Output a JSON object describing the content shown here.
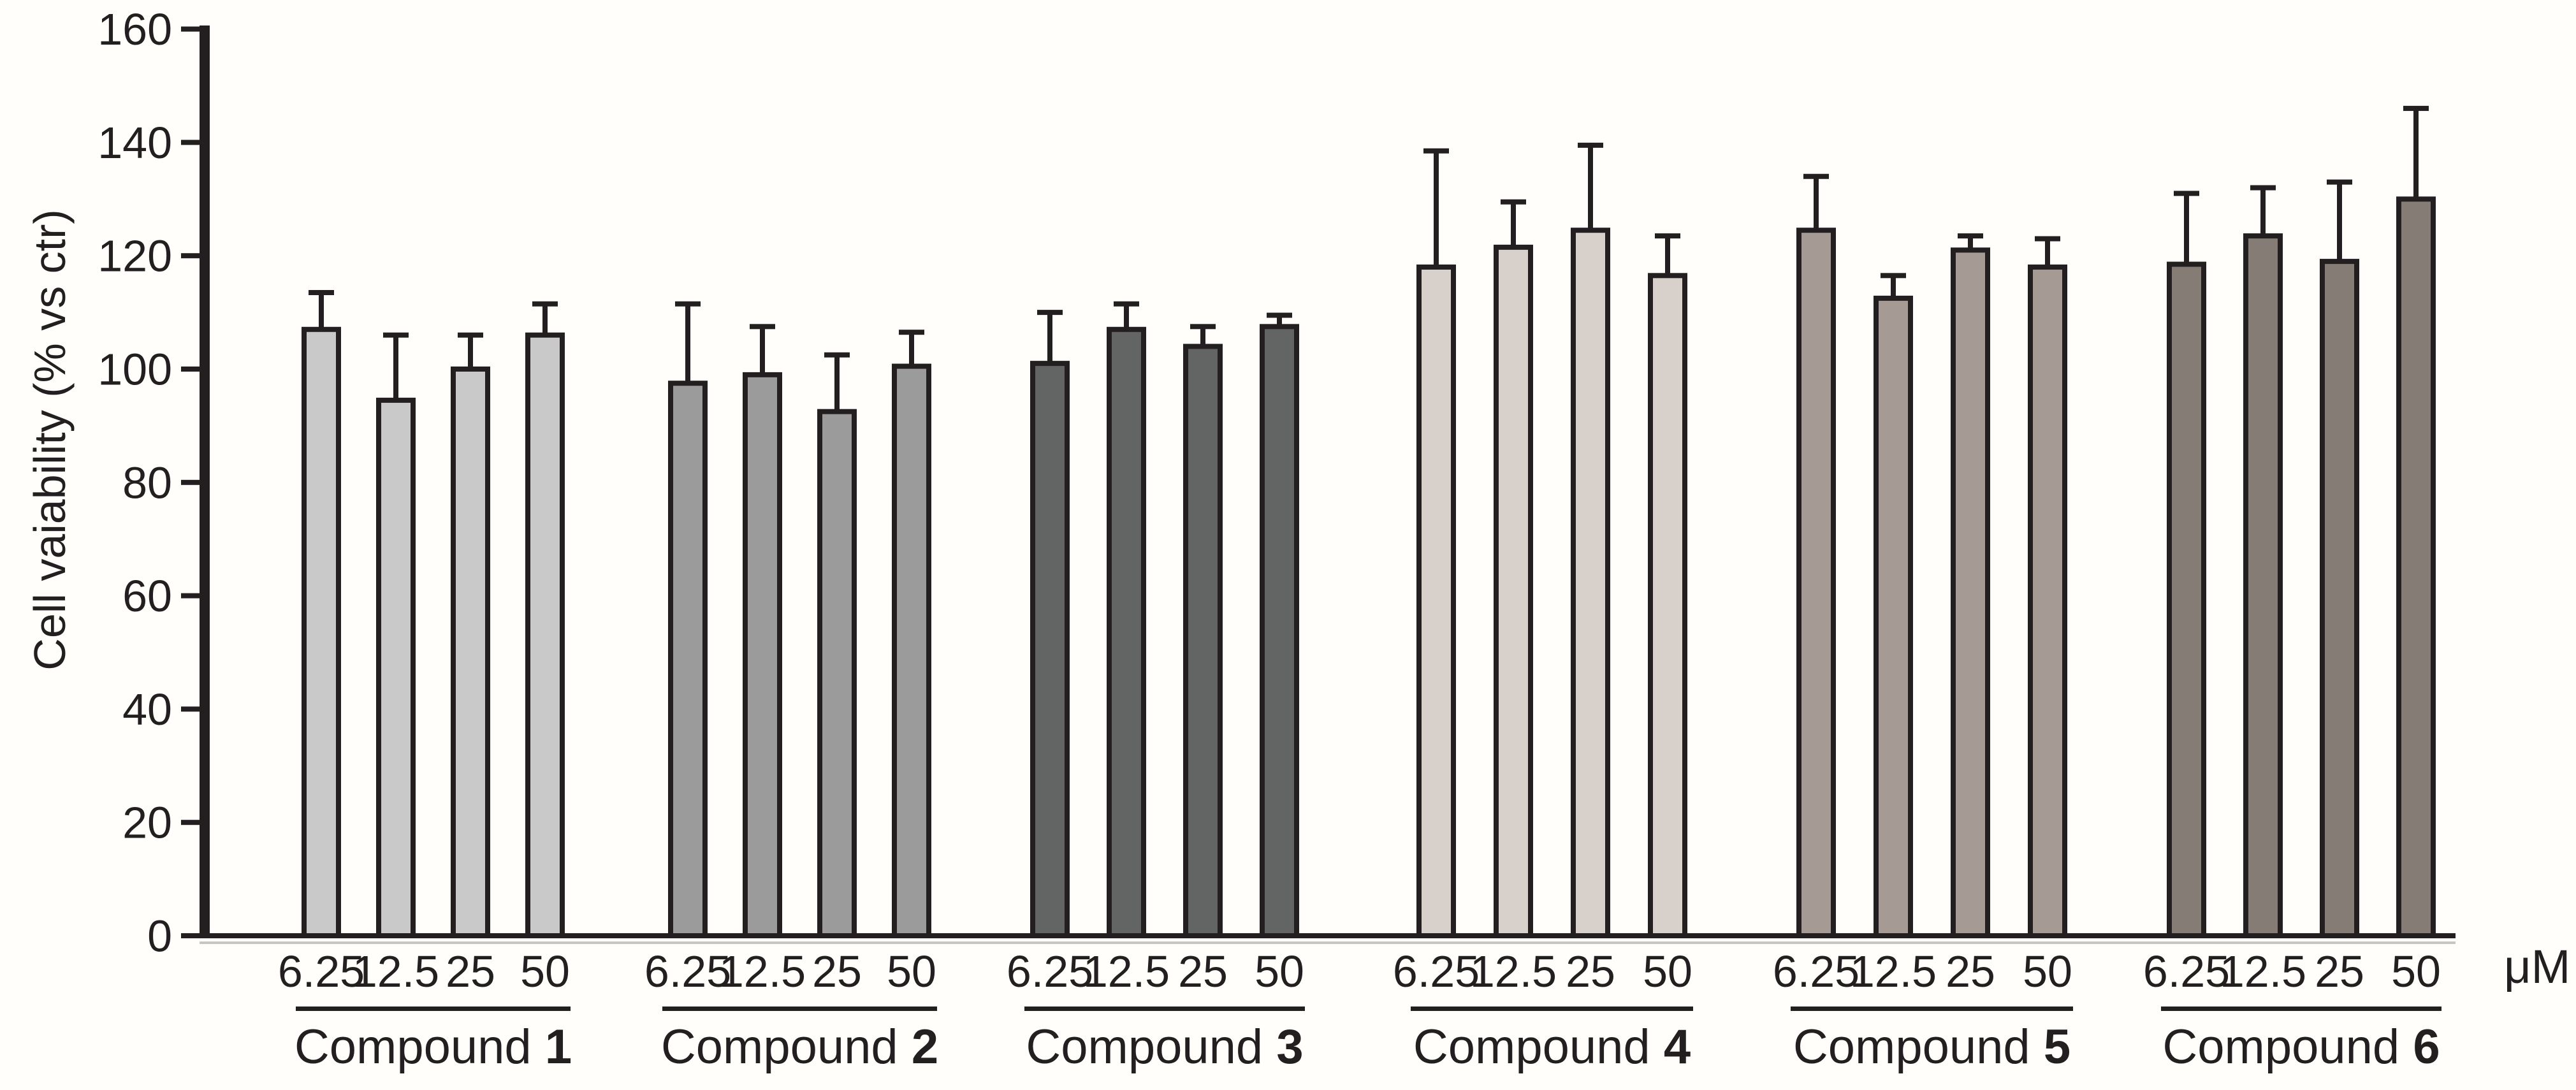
{
  "chart_data": {
    "type": "bar",
    "title": "",
    "ylabel": "Cell vaiability (% vs ctr)",
    "xlabel": "",
    "unit_label": "μM",
    "ylim": [
      0,
      160
    ],
    "yticks": [
      0,
      20,
      40,
      60,
      80,
      100,
      120,
      140,
      160
    ],
    "grid": false,
    "legend_position": "none",
    "error_bars": "upper only",
    "categories": [
      "6.25",
      "12.5",
      "25",
      "50"
    ],
    "series": [
      {
        "label_prefix": "Compound",
        "label_number": "1",
        "color": "#c9c9c9",
        "values": [
          107,
          94.5,
          100,
          106
        ],
        "errors": [
          6.5,
          11.5,
          6,
          5.5
        ]
      },
      {
        "label_prefix": "Compound",
        "label_number": "2",
        "color": "#9b9b9b",
        "values": [
          97.5,
          99,
          92.5,
          100.5
        ],
        "errors": [
          14,
          8.5,
          10,
          6
        ]
      },
      {
        "label_prefix": "Compound",
        "label_number": "3",
        "color": "#626563",
        "values": [
          101,
          107,
          104,
          107.5
        ],
        "errors": [
          9,
          4.5,
          3.5,
          2
        ]
      },
      {
        "label_prefix": "Compound",
        "label_number": "4",
        "color": "#d8d1cb",
        "values": [
          118,
          121.5,
          124.5,
          116.5
        ],
        "errors": [
          20.5,
          8,
          15,
          7
        ]
      },
      {
        "label_prefix": "Compound",
        "label_number": "5",
        "color": "#a59a94",
        "values": [
          124.5,
          112.5,
          121,
          118
        ],
        "errors": [
          9.5,
          4,
          2.5,
          5
        ]
      },
      {
        "label_prefix": "Compound",
        "label_number": "6",
        "color": "#857c75",
        "values": [
          118.5,
          123.5,
          119,
          130
        ],
        "errors": [
          12.5,
          8.5,
          14,
          16
        ]
      }
    ],
    "bar_outline_color": "#231f20",
    "axis_color": "#231f20",
    "background_color": "#fffefb"
  }
}
